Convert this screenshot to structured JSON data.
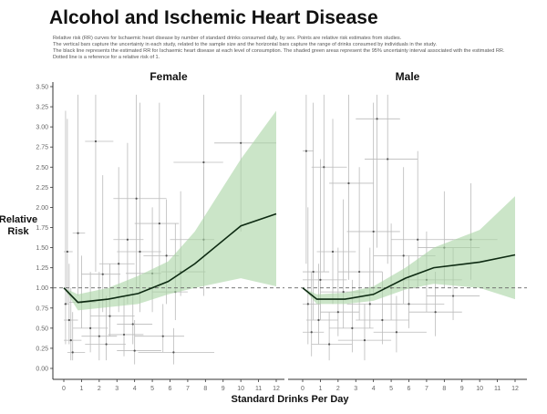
{
  "title": "Alcohol and Ischemic Heart Disease",
  "subtitle": [
    "Relative risk (RR) curves for Ischaemic heart disease by number of standard drinks consumed daily, by sex. Points are relative risk estimates from studies.",
    "The vertical bars capture the uncertainty in each study, related to the sample size and the horizontal bars capture the range of drinks consumed by individuals in the study.",
    "The black line represents the estimated RR for Ischaemic heart disease at each level of consumption. The shaded green areas represent the 95% uncertainty interval associated with the estimated RR.",
    "Dotted line is a reference for a relative risk of 1."
  ],
  "chart_data": {
    "type": "line",
    "xlabel": "Standard Drinks Per Day",
    "ylabel": "Relative Risk",
    "xlim": [
      0,
      12
    ],
    "ylim": [
      0,
      3.5
    ],
    "x_ticks": [
      "0",
      "1",
      "2",
      "3",
      "4",
      "5",
      "6",
      "7",
      "8",
      "9",
      "10",
      "11",
      "12"
    ],
    "y_ticks": [
      "0.00",
      "0.25",
      "0.50",
      "0.75",
      "1.00",
      "1.25",
      "1.50",
      "1.75",
      "2.00",
      "2.25",
      "2.50",
      "2.75",
      "3.00",
      "3.25",
      "3.50"
    ],
    "reference_line": 1,
    "colors": {
      "curve": "#0d2a12",
      "band": "#a8d4a4",
      "points": "#555555",
      "bars": "#bbbbbb",
      "ref": "#666666"
    },
    "panels": [
      {
        "name": "Female",
        "curve": {
          "x": [
            0,
            0.8,
            2.5,
            4.2,
            5.9,
            7.4,
            10,
            12
          ],
          "y": [
            1.0,
            0.82,
            0.86,
            0.93,
            1.08,
            1.3,
            1.77,
            1.92
          ]
        },
        "upper": [
          1.0,
          0.92,
          1.0,
          1.15,
          1.33,
          1.7,
          2.6,
          3.2
        ],
        "lower": [
          1.0,
          0.72,
          0.76,
          0.8,
          0.92,
          1.0,
          1.12,
          1.02
        ],
        "points": [
          [
            0.1,
            0.8,
            0.3,
            3.2,
            0,
            0.3
          ],
          [
            0.2,
            1.45,
            0.8,
            3.1,
            0,
            0.5
          ],
          [
            0.3,
            0.6,
            0.3,
            1.3,
            0,
            0.8
          ],
          [
            0.4,
            0.35,
            0.1,
            1.0,
            0,
            1
          ],
          [
            0.5,
            0.2,
            0.1,
            0.7,
            0.2,
            1.2
          ],
          [
            0.8,
            1.68,
            0.9,
            3.4,
            0.5,
            1.2
          ],
          [
            1,
            0.82,
            0.5,
            1.4,
            0.3,
            1.8
          ],
          [
            1.5,
            0.5,
            0.2,
            1.2,
            0.5,
            2.5
          ],
          [
            1.8,
            2.82,
            1.2,
            3.4,
            1.2,
            2.8
          ],
          [
            2,
            0.4,
            0.1,
            1.2,
            1,
            3
          ],
          [
            2.2,
            1.17,
            0.7,
            2.4,
            1,
            3.2
          ],
          [
            2.4,
            0.3,
            0.1,
            0.9,
            1.2,
            3.5
          ],
          [
            2.6,
            0.65,
            0.4,
            1.3,
            1.5,
            4
          ],
          [
            3.1,
            1.3,
            0.7,
            2.5,
            2,
            4
          ],
          [
            3.4,
            0.42,
            0.15,
            0.9,
            2.5,
            4.5
          ],
          [
            3.6,
            1.6,
            0.8,
            2.8,
            2.8,
            4.5
          ],
          [
            3.9,
            0.55,
            0.3,
            1.0,
            3,
            5
          ],
          [
            4,
            0.22,
            0.05,
            0.6,
            3,
            5.5
          ],
          [
            4.1,
            2.11,
            1.0,
            3.4,
            2.8,
            5.8
          ],
          [
            4.3,
            1.45,
            0.7,
            3.3,
            3,
            5.5
          ],
          [
            5,
            1.18,
            0.7,
            2.0,
            3.5,
            5.5
          ],
          [
            5.4,
            1.8,
            1.0,
            3.3,
            4,
            6.5
          ],
          [
            5.6,
            0.4,
            0.2,
            0.8,
            4,
            6.8
          ],
          [
            5.8,
            1.4,
            0.8,
            2.1,
            4.5,
            6.5
          ],
          [
            6.2,
            0.2,
            0.05,
            0.5,
            4.2,
            8.5
          ],
          [
            6.3,
            0.95,
            0.6,
            1.8,
            5,
            7
          ],
          [
            7.9,
            2.56,
            1.4,
            3.4,
            6.2,
            9
          ],
          [
            7.9,
            1.6,
            0.9,
            2.5,
            6,
            8.5
          ],
          [
            10,
            2.8,
            1.7,
            3.4,
            8.5,
            12
          ],
          [
            6.6,
            1.2,
            0.9,
            2.2,
            5.5,
            8
          ]
        ]
      },
      {
        "name": "Male",
        "curve": {
          "x": [
            0,
            0.8,
            2.4,
            4,
            5.8,
            7.4,
            10,
            12
          ],
          "y": [
            1.0,
            0.86,
            0.86,
            0.92,
            1.12,
            1.25,
            1.32,
            1.41
          ]
        },
        "upper": [
          1.0,
          0.92,
          0.94,
          1.02,
          1.25,
          1.5,
          1.72,
          2.14
        ],
        "lower": [
          1.0,
          0.8,
          0.8,
          0.84,
          0.98,
          1.05,
          1.0,
          0.86
        ],
        "points": [
          [
            0.2,
            2.7,
            1.3,
            3.4,
            0,
            0.6
          ],
          [
            0.3,
            0.8,
            0.3,
            2.0,
            0,
            1
          ],
          [
            0.5,
            0.45,
            0.15,
            1.2,
            0,
            1.2
          ],
          [
            0.6,
            1.2,
            0.6,
            3.3,
            0,
            1.5
          ],
          [
            0.9,
            0.6,
            0.3,
            1.3,
            0.2,
            2
          ],
          [
            1.2,
            2.5,
            1.2,
            3.4,
            0.5,
            2.5
          ],
          [
            1.5,
            0.3,
            0.1,
            0.7,
            0.5,
            2.8
          ],
          [
            1.7,
            1.45,
            0.8,
            3.1,
            0.8,
            3
          ],
          [
            2,
            0.7,
            0.4,
            1.5,
            1,
            3.2
          ],
          [
            2.3,
            0.95,
            0.5,
            2.1,
            1,
            3.5
          ],
          [
            2.6,
            2.3,
            1.1,
            3.4,
            1.5,
            4
          ],
          [
            2.8,
            0.5,
            0.2,
            1.1,
            1.5,
            4
          ],
          [
            3.2,
            1.2,
            0.6,
            2.5,
            2,
            4.5
          ],
          [
            3.5,
            0.35,
            0.1,
            0.8,
            2,
            5
          ],
          [
            3.8,
            0.8,
            0.5,
            1.5,
            2.5,
            5.5
          ],
          [
            4,
            1.7,
            0.9,
            3.3,
            2.5,
            5.5
          ],
          [
            4.5,
            0.6,
            0.3,
            1.2,
            3,
            6
          ],
          [
            4.8,
            2.6,
            1.3,
            3.4,
            3.5,
            6.5
          ],
          [
            5,
            1.0,
            0.6,
            1.8,
            3.5,
            6.5
          ],
          [
            5.3,
            0.45,
            0.2,
            0.9,
            4,
            7
          ],
          [
            5.7,
            1.4,
            0.8,
            2.5,
            4,
            7.5
          ],
          [
            6,
            0.8,
            0.5,
            1.4,
            4.5,
            8
          ],
          [
            6.5,
            1.6,
            1.0,
            2.7,
            5,
            8.5
          ],
          [
            7,
            1.1,
            0.7,
            1.7,
            5.5,
            9
          ],
          [
            7.5,
            0.7,
            0.4,
            1.2,
            6,
            9
          ],
          [
            8,
            1.5,
            1.0,
            2.2,
            6.5,
            10
          ],
          [
            8.5,
            0.9,
            0.6,
            1.5,
            7,
            10
          ],
          [
            9.5,
            1.6,
            1.1,
            2.3,
            8,
            11
          ],
          [
            4.2,
            3.1,
            1.5,
            3.4,
            3,
            5.5
          ],
          [
            1,
            1.1,
            0.6,
            2.6,
            0,
            2.5
          ]
        ]
      }
    ]
  }
}
